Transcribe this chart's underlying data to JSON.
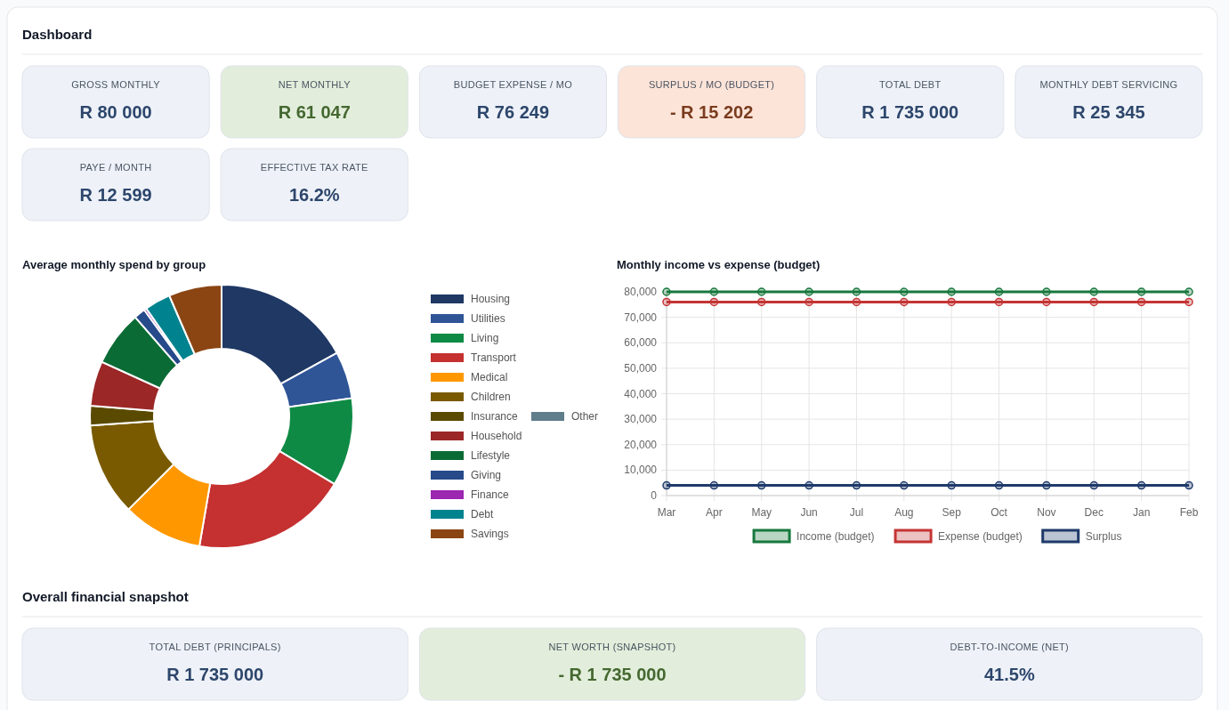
{
  "chart_data": [
    {
      "type": "other",
      "title": "Dashboard",
      "categories": [
        "GROSS MONTHLY",
        "NET MONTHLY",
        "BUDGET EXPENSE / MO",
        "SURPLUS / MO (BUDGET)",
        "TOTAL DEBT",
        "MONTHLY DEBT SERVICING",
        "PAYE / MONTH",
        "EFFECTIVE TAX RATE"
      ],
      "value_labels": [
        "R 80 000",
        "R 61 047",
        "R 76 249",
        "- R 15 202",
        "R 1 735 000",
        "R 25 345",
        "R 12 599",
        "16.2%"
      ],
      "colors": [
        "#eef2f8",
        "#e2eedb",
        "#eef2f8",
        "#fde4d8",
        "#eef2f8",
        "#eef2f8",
        "#eef2f8",
        "#eef2f8"
      ]
    },
    {
      "type": "donut",
      "title": "Average monthly spend by group",
      "categories": [
        "Housing",
        "Utilities",
        "Living",
        "Transport",
        "Medical",
        "Children",
        "Insurance",
        "Household",
        "Lifestyle",
        "Giving",
        "Finance",
        "Debt",
        "Savings",
        "Other"
      ],
      "values": [
        17.0,
        5.8,
        10.8,
        19.1,
        9.8,
        11.4,
        2.4,
        5.5,
        6.8,
        1.4,
        0.3,
        3.2,
        6.5,
        0
      ],
      "colors": [
        "#1f3864",
        "#2f5597",
        "#0e8a45",
        "#c53030",
        "#ff9800",
        "#7a5a00",
        "#5a4a00",
        "#9b2727",
        "#0b6b35",
        "#264a8a",
        "#9c27b0",
        "#00838f",
        "#8b4513",
        "#607d8b"
      ],
      "legend": "right"
    },
    {
      "type": "line",
      "title": "Monthly income vs expense (budget)",
      "categories": [
        "Mar",
        "Apr",
        "May",
        "Jun",
        "Jul",
        "Aug",
        "Sep",
        "Oct",
        "Nov",
        "Dec",
        "Jan",
        "Feb"
      ],
      "series": [
        {
          "name": "Income (budget)",
          "color": "#17783d",
          "values": [
            80000,
            80000,
            80000,
            80000,
            80000,
            80000,
            80000,
            80000,
            80000,
            80000,
            80000,
            80000
          ]
        },
        {
          "name": "Expense (budget)",
          "color": "#c53434",
          "values": [
            76000,
            76000,
            76000,
            76000,
            76000,
            76000,
            76000,
            76000,
            76000,
            76000,
            76000,
            76000
          ]
        },
        {
          "name": "Surplus",
          "color": "#1f3a6b",
          "values": [
            4000,
            4000,
            4000,
            4000,
            4000,
            4000,
            4000,
            4000,
            4000,
            4000,
            4000,
            4000
          ]
        }
      ],
      "ylim": [
        0,
        80000
      ],
      "yticks": [
        0,
        {
          "value": 10000,
          "label": "10,000"
        },
        {
          "value": 20000,
          "label": "20,000"
        },
        {
          "value": 30000,
          "label": "30,000"
        },
        {
          "value": 40000,
          "label": "40,000"
        },
        {
          "value": 50000,
          "label": "50,000"
        },
        {
          "value": 60000,
          "label": "60,000"
        },
        {
          "value": 70000,
          "label": "70,000"
        },
        {
          "value": 80000,
          "label": "80,000"
        }
      ],
      "grid": true,
      "legend": "bottom",
      "marker": "circle",
      "line_style": "solid"
    },
    {
      "type": "other",
      "title": "Overall financial snapshot",
      "categories": [
        "TOTAL DEBT (PRINCIPALS)",
        "NET WORTH (SNAPSHOT)",
        "DEBT-TO-INCOME (NET)"
      ],
      "value_labels": [
        "R 1 735 000",
        "- R 1 735 000",
        "41.5%"
      ],
      "colors": [
        "#eef2f8",
        "#e2eedb",
        "#eef2f8"
      ]
    }
  ]
}
